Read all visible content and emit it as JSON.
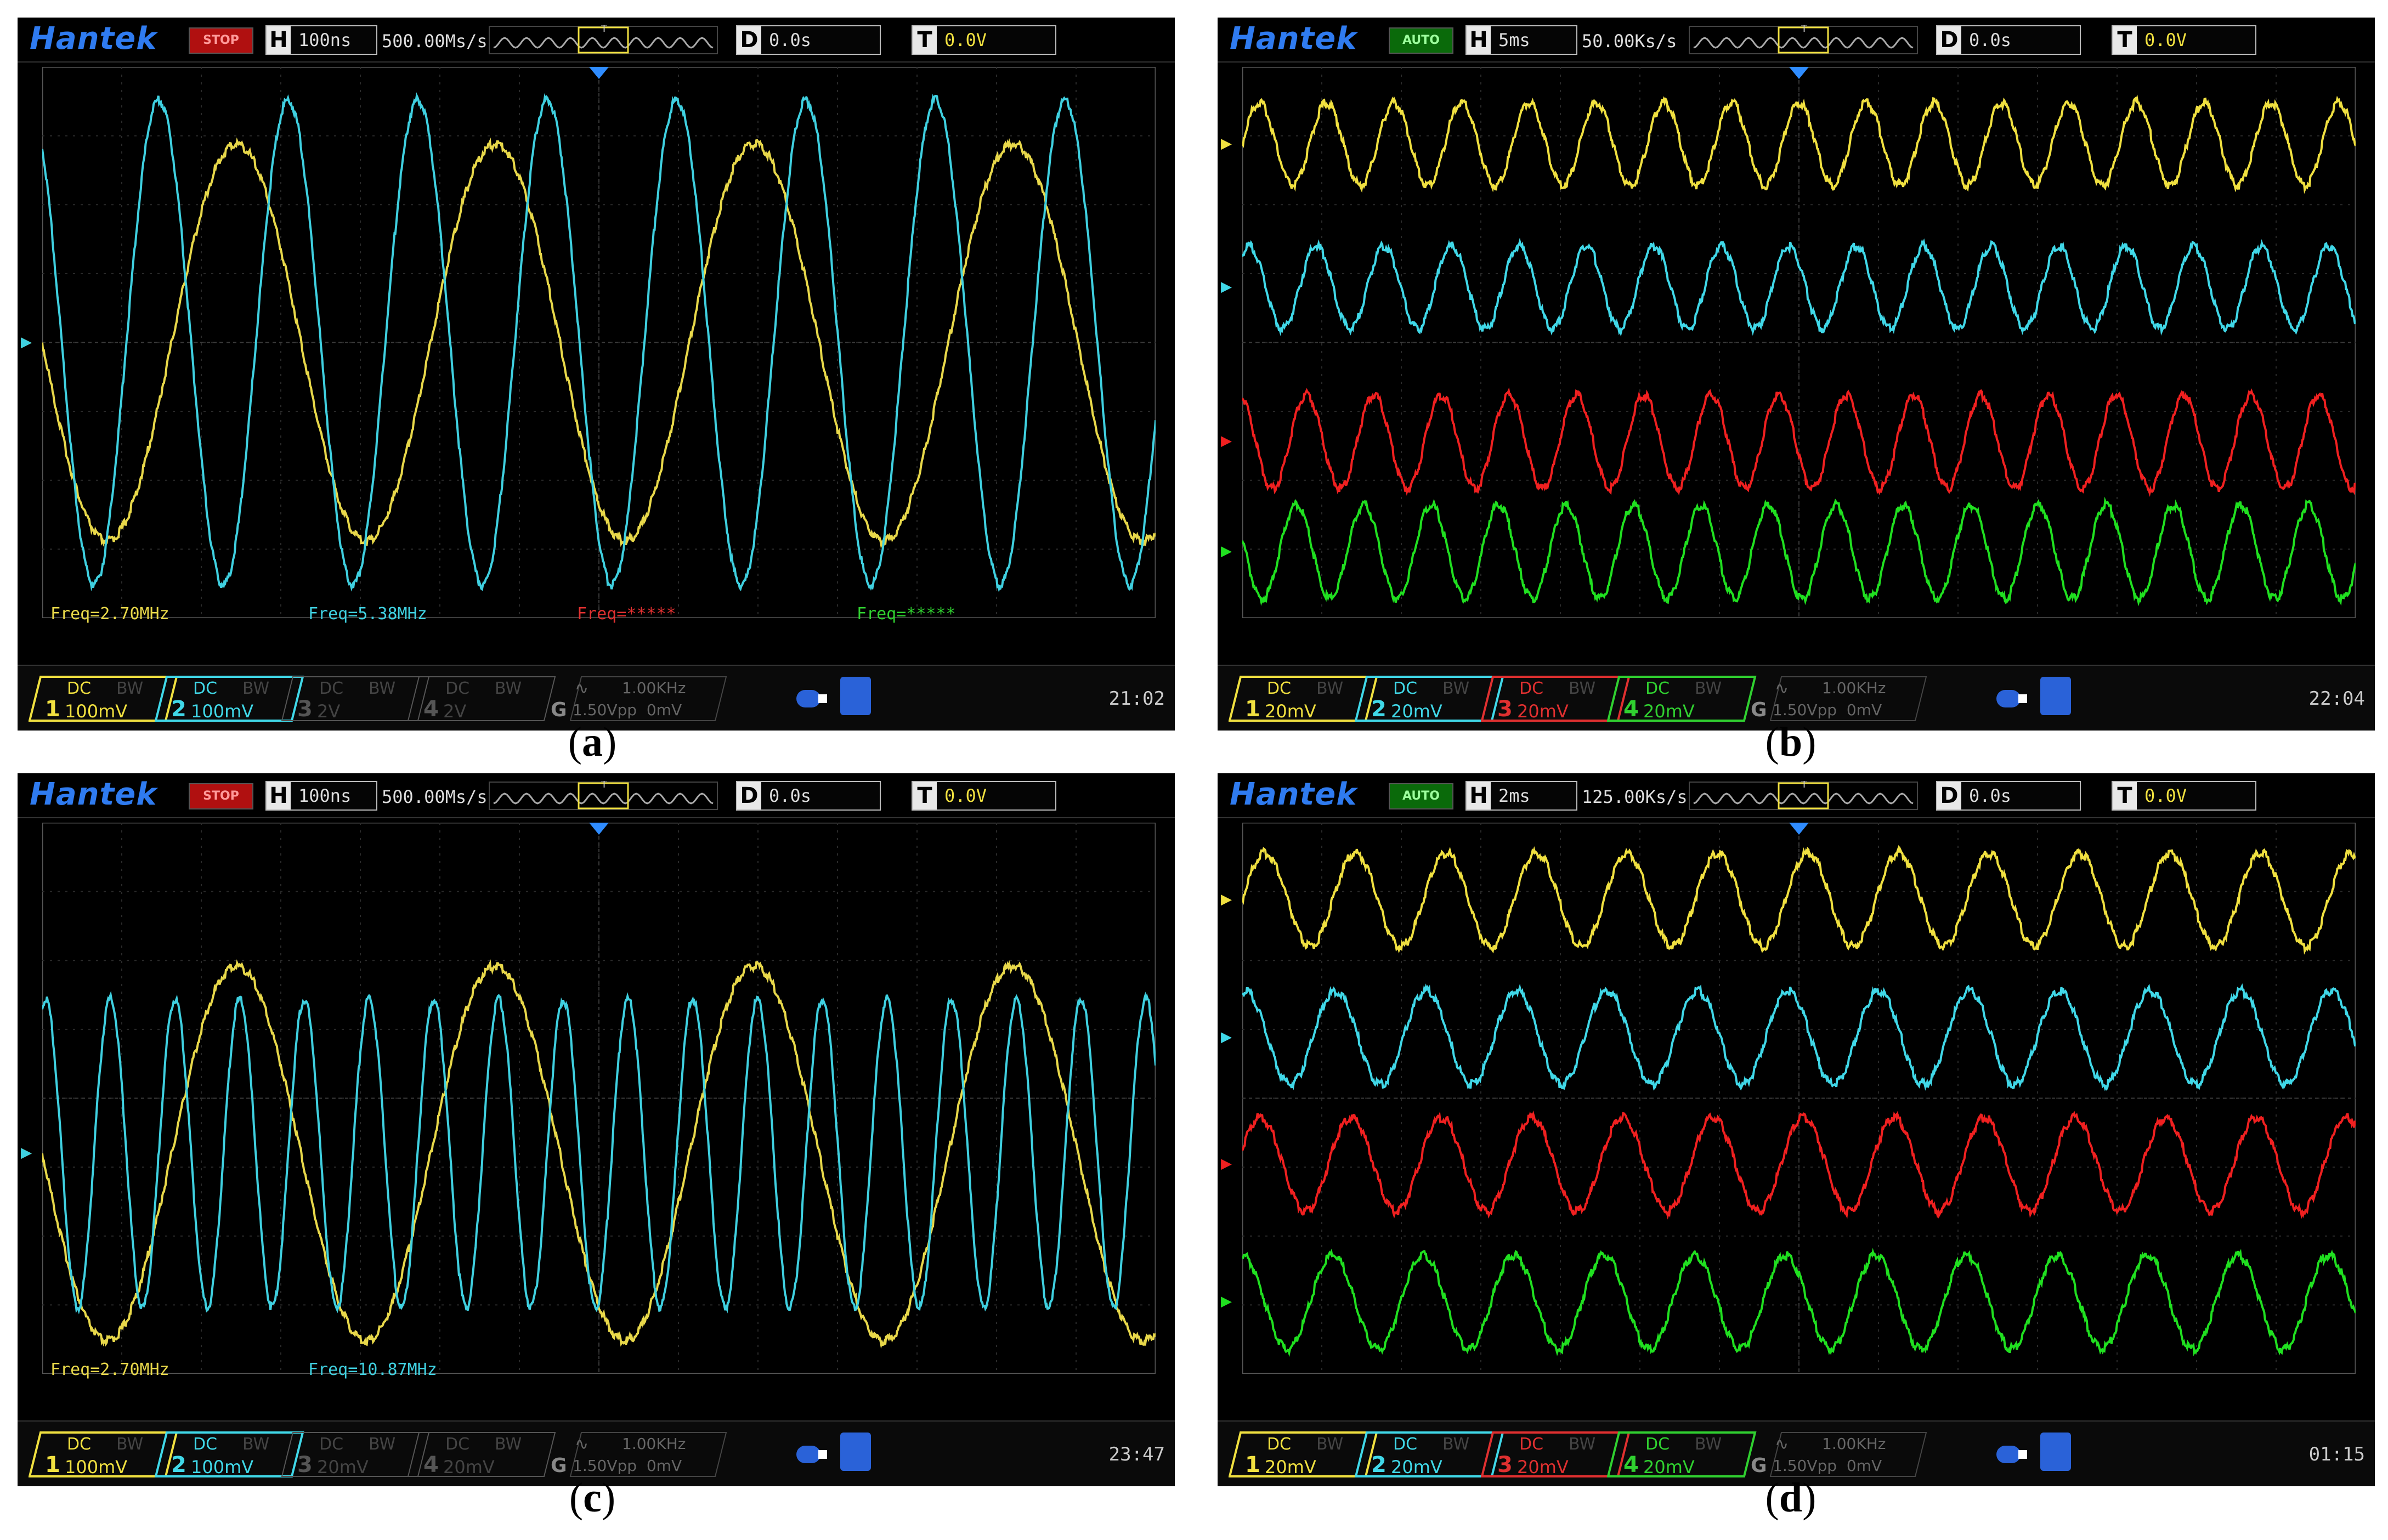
{
  "panels": [
    {
      "id": "a",
      "brand": "Hantek",
      "run_state": "STOP",
      "h_key": "H",
      "h_value": "100ns",
      "rate": "500.00Ms/s",
      "d_key": "D",
      "d_value": "0.0s",
      "t_key": "T",
      "t_value": "0.0V",
      "freq_labels": [
        {
          "text": "Freq=2.70MHz",
          "color": "#e8d84a"
        },
        {
          "text": "Freq=5.38MHz",
          "color": "#3fd0e0"
        },
        {
          "text": "Freq=*****",
          "color": "#e03030"
        },
        {
          "text": "Freq=*****",
          "color": "#30d030"
        }
      ],
      "channels": [
        {
          "num": "1",
          "coupling": "DC",
          "bw": "BW",
          "scale": "100mV",
          "color": "#f0e040",
          "active": true
        },
        {
          "num": "2",
          "coupling": "DC",
          "bw": "BW",
          "scale": "100mV",
          "color": "#40d8e8",
          "active": true
        },
        {
          "num": "3",
          "coupling": "DC",
          "bw": "BW",
          "scale": "2V",
          "color": "#555555",
          "active": false
        },
        {
          "num": "4",
          "coupling": "DC",
          "bw": "BW",
          "scale": "2V",
          "color": "#555555",
          "active": false
        }
      ],
      "generator": {
        "g": "G",
        "freq": "1.00KHz",
        "vpp": "1.50Vpp",
        "offset": "0mV"
      },
      "clock": "21:02",
      "caption_letter": "a",
      "waves": [
        {
          "color": "#e8d84a",
          "cycles": 4.3,
          "amplitude": 0.36,
          "offset": 0.0,
          "phase": -0.5
        },
        {
          "color": "#3fd0e0",
          "cycles": 8.6,
          "amplitude": 0.44,
          "offset": 0.0,
          "phase": 0.35
        }
      ]
    },
    {
      "id": "b",
      "brand": "Hantek",
      "run_state": "AUTO",
      "h_key": "H",
      "h_value": "5ms",
      "rate": "50.00Ks/s",
      "d_key": "D",
      "d_value": "0.0s",
      "t_key": "T",
      "t_value": "0.0V",
      "freq_labels": [],
      "channels": [
        {
          "num": "1",
          "coupling": "DC",
          "bw": "BW",
          "scale": "20mV",
          "color": "#f0e040",
          "active": true
        },
        {
          "num": "2",
          "coupling": "DC",
          "bw": "BW",
          "scale": "20mV",
          "color": "#40d8e8",
          "active": true
        },
        {
          "num": "3",
          "coupling": "DC",
          "bw": "BW",
          "scale": "20mV",
          "color": "#e03030",
          "active": true
        },
        {
          "num": "4",
          "coupling": "DC",
          "bw": "BW",
          "scale": "20mV",
          "color": "#30d030",
          "active": true
        }
      ],
      "generator": {
        "g": "G",
        "freq": "1.00KHz",
        "vpp": "1.50Vpp",
        "offset": "0mV"
      },
      "clock": "22:04",
      "caption_letter": "b",
      "waves": [
        {
          "color": "#f0e040",
          "cycles": 16.5,
          "amplitude": 0.075,
          "offset": -0.36,
          "phase": 0.0
        },
        {
          "color": "#40d8e8",
          "cycles": 16.5,
          "amplitude": 0.075,
          "offset": -0.1,
          "phase": 0.15
        },
        {
          "color": "#f02020",
          "cycles": 16.5,
          "amplitude": 0.085,
          "offset": 0.18,
          "phase": 0.3
        },
        {
          "color": "#20e020",
          "cycles": 16.5,
          "amplitude": 0.085,
          "offset": 0.38,
          "phase": 0.45
        }
      ]
    },
    {
      "id": "c",
      "brand": "Hantek",
      "run_state": "STOP",
      "h_key": "H",
      "h_value": "100ns",
      "rate": "500.00Ms/s",
      "d_key": "D",
      "d_value": "0.0s",
      "t_key": "T",
      "t_value": "0.0V",
      "freq_labels": [
        {
          "text": "Freq=2.70MHz",
          "color": "#e8d84a"
        },
        {
          "text": "Freq=10.87MHz",
          "color": "#3fd0e0"
        }
      ],
      "channels": [
        {
          "num": "1",
          "coupling": "DC",
          "bw": "BW",
          "scale": "100mV",
          "color": "#f0e040",
          "active": true
        },
        {
          "num": "2",
          "coupling": "DC",
          "bw": "BW",
          "scale": "100mV",
          "color": "#40d8e8",
          "active": true
        },
        {
          "num": "3",
          "coupling": "DC",
          "bw": "BW",
          "scale": "20mV",
          "color": "#555555",
          "active": false
        },
        {
          "num": "4",
          "coupling": "DC",
          "bw": "BW",
          "scale": "20mV",
          "color": "#555555",
          "active": false
        }
      ],
      "generator": {
        "g": "G",
        "freq": "1.00KHz",
        "vpp": "1.50Vpp",
        "offset": "0mV"
      },
      "clock": "23:47",
      "caption_letter": "c",
      "waves": [
        {
          "color": "#e8d84a",
          "cycles": 4.3,
          "amplitude": 0.34,
          "offset": 0.1,
          "phase": -0.5
        },
        {
          "color": "#3fd0e0",
          "cycles": 17.2,
          "amplitude": 0.28,
          "offset": 0.1,
          "phase": 0.2
        }
      ]
    },
    {
      "id": "d",
      "brand": "Hantek",
      "run_state": "AUTO",
      "h_key": "H",
      "h_value": "2ms",
      "rate": "125.00Ks/s",
      "d_key": "D",
      "d_value": "0.0s",
      "t_key": "T",
      "t_value": "0.0V",
      "freq_labels": [],
      "channels": [
        {
          "num": "1",
          "coupling": "DC",
          "bw": "BW",
          "scale": "20mV",
          "color": "#f0e040",
          "active": true
        },
        {
          "num": "2",
          "coupling": "DC",
          "bw": "BW",
          "scale": "20mV",
          "color": "#40d8e8",
          "active": true
        },
        {
          "num": "3",
          "coupling": "DC",
          "bw": "BW",
          "scale": "20mV",
          "color": "#e03030",
          "active": true
        },
        {
          "num": "4",
          "coupling": "DC",
          "bw": "BW",
          "scale": "20mV",
          "color": "#30d030",
          "active": true
        }
      ],
      "generator": {
        "g": "G",
        "freq": "1.00KHz",
        "vpp": "1.50Vpp",
        "offset": "0mV"
      },
      "clock": "01:15",
      "caption_letter": "d",
      "waves": [
        {
          "color": "#f0e040",
          "cycles": 12.3,
          "amplitude": 0.085,
          "offset": -0.36,
          "phase": 0.0
        },
        {
          "color": "#40d8e8",
          "cycles": 12.3,
          "amplitude": 0.085,
          "offset": -0.11,
          "phase": 0.22
        },
        {
          "color": "#f02020",
          "cycles": 12.3,
          "amplitude": 0.085,
          "offset": 0.12,
          "phase": 0.05
        },
        {
          "color": "#20e020",
          "cycles": 12.3,
          "amplitude": 0.085,
          "offset": 0.37,
          "phase": 0.25
        }
      ]
    }
  ]
}
